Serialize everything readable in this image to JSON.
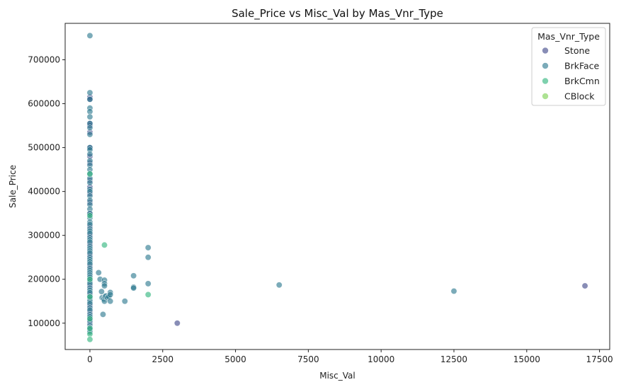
{
  "chart_data": {
    "type": "scatter",
    "title": "Sale_Price vs Misc_Val by Mas_Vnr_Type",
    "xlabel": "Misc_Val",
    "ylabel": "Sale_Price",
    "xlim": [
      -850,
      17850
    ],
    "ylim": [
      40000,
      783000
    ],
    "x_ticks": [
      0,
      2500,
      5000,
      7500,
      10000,
      12500,
      15000,
      17500
    ],
    "y_ticks": [
      100000,
      200000,
      300000,
      400000,
      500000,
      600000,
      700000
    ],
    "grid": false,
    "legend": {
      "title": "Mas_Vnr_Type",
      "placement": "top-right",
      "entries": [
        "Stone",
        "BrkFace",
        "BrkCmn",
        "CBlock"
      ]
    },
    "colors": {
      "Stone": "#3f4789",
      "BrkFace": "#2a788e",
      "BrkCmn": "#2fb47c",
      "CBlock": "#7ad151"
    },
    "series": [
      {
        "name": "Stone",
        "points": [
          [
            0,
            615000
          ],
          [
            0,
            610000
          ],
          [
            0,
            555000
          ],
          [
            0,
            550000
          ],
          [
            0,
            535000
          ],
          [
            0,
            500000
          ],
          [
            0,
            480000
          ],
          [
            0,
            465000
          ],
          [
            0,
            425000
          ],
          [
            0,
            410000
          ],
          [
            0,
            395000
          ],
          [
            0,
            375000
          ],
          [
            0,
            350000
          ],
          [
            0,
            320000
          ],
          [
            0,
            300000
          ],
          [
            0,
            280000
          ],
          [
            0,
            255000
          ],
          [
            0,
            230000
          ],
          [
            0,
            200000
          ],
          [
            0,
            185000
          ],
          [
            0,
            165000
          ],
          [
            0,
            140000
          ],
          [
            0,
            125000
          ],
          [
            0,
            110000
          ],
          [
            0,
            100000
          ],
          [
            3000,
            100000
          ],
          [
            17000,
            185000
          ]
        ]
      },
      {
        "name": "BrkFace",
        "points": [
          [
            0,
            755000
          ],
          [
            0,
            625000
          ],
          [
            0,
            610000
          ],
          [
            0,
            590000
          ],
          [
            0,
            582000
          ],
          [
            0,
            570000
          ],
          [
            0,
            555000
          ],
          [
            0,
            545000
          ],
          [
            0,
            530000
          ],
          [
            0,
            500000
          ],
          [
            0,
            495000
          ],
          [
            0,
            485000
          ],
          [
            0,
            470000
          ],
          [
            0,
            460000
          ],
          [
            0,
            450000
          ],
          [
            0,
            440000
          ],
          [
            0,
            430000
          ],
          [
            0,
            420000
          ],
          [
            0,
            405000
          ],
          [
            0,
            400000
          ],
          [
            0,
            390000
          ],
          [
            0,
            380000
          ],
          [
            0,
            370000
          ],
          [
            0,
            360000
          ],
          [
            0,
            350000
          ],
          [
            0,
            340000
          ],
          [
            0,
            330000
          ],
          [
            0,
            325000
          ],
          [
            0,
            315000
          ],
          [
            0,
            310000
          ],
          [
            0,
            305000
          ],
          [
            0,
            295000
          ],
          [
            0,
            290000
          ],
          [
            0,
            285000
          ],
          [
            0,
            275000
          ],
          [
            0,
            270000
          ],
          [
            0,
            265000
          ],
          [
            0,
            260000
          ],
          [
            0,
            250000
          ],
          [
            0,
            245000
          ],
          [
            0,
            240000
          ],
          [
            0,
            235000
          ],
          [
            0,
            225000
          ],
          [
            0,
            220000
          ],
          [
            0,
            215000
          ],
          [
            0,
            210000
          ],
          [
            0,
            205000
          ],
          [
            0,
            195000
          ],
          [
            0,
            190000
          ],
          [
            0,
            180000
          ],
          [
            0,
            175000
          ],
          [
            0,
            170000
          ],
          [
            0,
            160000
          ],
          [
            0,
            155000
          ],
          [
            0,
            150000
          ],
          [
            0,
            145000
          ],
          [
            0,
            135000
          ],
          [
            0,
            130000
          ],
          [
            0,
            120000
          ],
          [
            0,
            115000
          ],
          [
            0,
            105000
          ],
          [
            0,
            95000
          ],
          [
            0,
            90000
          ],
          [
            0,
            85000
          ],
          [
            0,
            80000
          ],
          [
            300,
            215000
          ],
          [
            350,
            200000
          ],
          [
            400,
            172000
          ],
          [
            420,
            158000
          ],
          [
            450,
            120000
          ],
          [
            480,
            155000
          ],
          [
            500,
            198000
          ],
          [
            500,
            190000
          ],
          [
            500,
            185000
          ],
          [
            500,
            150000
          ],
          [
            520,
            160000
          ],
          [
            550,
            162000
          ],
          [
            600,
            158000
          ],
          [
            650,
            160000
          ],
          [
            700,
            170000
          ],
          [
            700,
            165000
          ],
          [
            700,
            150000
          ],
          [
            1200,
            150000
          ],
          [
            1500,
            208000
          ],
          [
            1500,
            182000
          ],
          [
            1500,
            180000
          ],
          [
            2000,
            272000
          ],
          [
            2000,
            250000
          ],
          [
            2000,
            190000
          ],
          [
            6500,
            187000
          ],
          [
            12500,
            173000
          ]
        ]
      },
      {
        "name": "BrkCmn",
        "points": [
          [
            0,
            440000
          ],
          [
            0,
            345000
          ],
          [
            0,
            200000
          ],
          [
            0,
            160000
          ],
          [
            0,
            110000
          ],
          [
            0,
            88000
          ],
          [
            0,
            75000
          ],
          [
            0,
            63000
          ],
          [
            500,
            278000
          ],
          [
            2000,
            165000
          ]
        ]
      },
      {
        "name": "CBlock",
        "points": []
      }
    ]
  }
}
